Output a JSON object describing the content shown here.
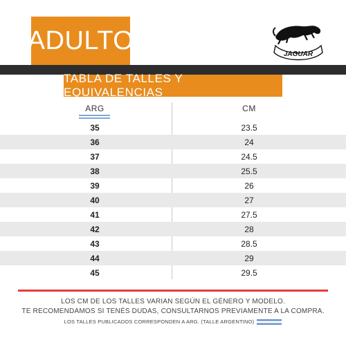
{
  "header": {
    "badge": "ADULTO",
    "logo_text": "JAGUAR"
  },
  "table": {
    "title": "TABLA DE TALLES Y EQUIVALENCIAS",
    "columns": [
      "ARG",
      "CM"
    ],
    "rows": [
      {
        "arg": "35",
        "cm": "23.5"
      },
      {
        "arg": "36",
        "cm": "24"
      },
      {
        "arg": "37",
        "cm": "24.5"
      },
      {
        "arg": "38",
        "cm": "25.5"
      },
      {
        "arg": "39",
        "cm": "26"
      },
      {
        "arg": "40",
        "cm": "27"
      },
      {
        "arg": "41",
        "cm": "27.5"
      },
      {
        "arg": "42",
        "cm": "28"
      },
      {
        "arg": "43",
        "cm": "28.5"
      },
      {
        "arg": "44",
        "cm": "29"
      },
      {
        "arg": "45",
        "cm": "29.5"
      }
    ]
  },
  "footer": {
    "line1": "LOS CM DE LOS TALLES VARIAN SEGÚN EL GÉNERO Y MODELO.",
    "line2": "TE RECOMENDAMOS SI TENÉS DUDAS, CONSULTARNOS PREVIAMENTE A LA COMPRA.",
    "line3": "LOS TALLES PUBLICADOS CORRESPONDEN A ARG. (TALLE ARGENTINO)"
  },
  "colors": {
    "accent": "#e98c1e",
    "band": "#2d2d2d",
    "rule": "#e43b3b",
    "flag": "#7fa6d8"
  }
}
